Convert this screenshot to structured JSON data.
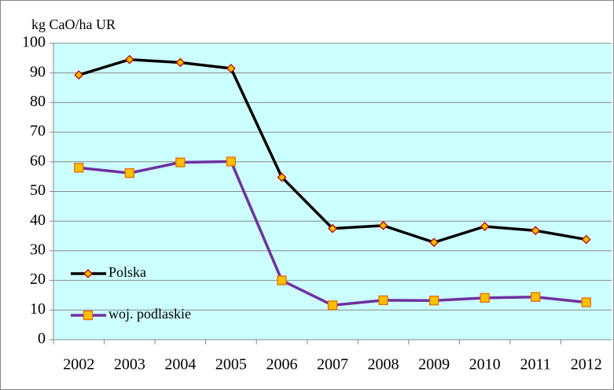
{
  "chart_data": {
    "type": "line",
    "y_label": "kg CaO/ha UR",
    "categories": [
      "2002",
      "2003",
      "2004",
      "2005",
      "2006",
      "2007",
      "2008",
      "2009",
      "2010",
      "2011",
      "2012"
    ],
    "series": [
      {
        "name": "Polska",
        "color": "#000000",
        "marker": "diamond",
        "marker_fill": "#ffc000",
        "marker_edge": "#c00000",
        "values": [
          89.3,
          94.5,
          93.5,
          91.5,
          54.8,
          37.5,
          38.5,
          32.8,
          38.2,
          36.8,
          33.8
        ]
      },
      {
        "name": "woj. podlaskie",
        "color": "#7030a0",
        "marker": "square",
        "marker_fill": "#ffc000",
        "marker_edge": "#e46c0a",
        "values": [
          58.0,
          56.2,
          59.8,
          60.1,
          20.0,
          11.6,
          13.3,
          13.2,
          14.1,
          14.4,
          12.6
        ]
      }
    ],
    "ylim": [
      0,
      100
    ],
    "yticks": [
      0,
      10,
      20,
      30,
      40,
      50,
      60,
      70,
      80,
      90,
      100
    ],
    "grid": true,
    "plot_background": "#ccffff",
    "legend_position": "lower left"
  }
}
